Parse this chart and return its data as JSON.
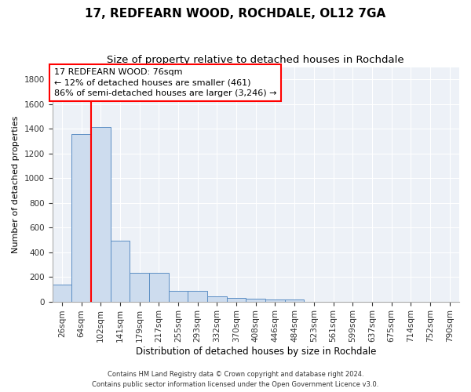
{
  "title": "17, REDFEARN WOOD, ROCHDALE, OL12 7GA",
  "subtitle": "Size of property relative to detached houses in Rochdale",
  "xlabel": "Distribution of detached houses by size in Rochdale",
  "ylabel": "Number of detached properties",
  "footnote1": "Contains HM Land Registry data © Crown copyright and database right 2024.",
  "footnote2": "Contains public sector information licensed under the Open Government Licence v3.0.",
  "bar_labels": [
    "26sqm",
    "64sqm",
    "102sqm",
    "141sqm",
    "179sqm",
    "217sqm",
    "255sqm",
    "293sqm",
    "332sqm",
    "370sqm",
    "408sqm",
    "446sqm",
    "484sqm",
    "523sqm",
    "561sqm",
    "599sqm",
    "637sqm",
    "675sqm",
    "714sqm",
    "752sqm",
    "790sqm"
  ],
  "bar_values": [
    140,
    1360,
    1415,
    490,
    230,
    230,
    85,
    85,
    42,
    27,
    20,
    15,
    18,
    0,
    0,
    0,
    0,
    0,
    0,
    0,
    0
  ],
  "bar_color": "#cddcee",
  "bar_edge_color": "#5b8ec4",
  "red_line_x": 1.5,
  "property_label": "17 REDFEARN WOOD: 76sqm",
  "annotation_line1": "← 12% of detached houses are smaller (461)",
  "annotation_line2": "86% of semi-detached houses are larger (3,246) →",
  "ylim": [
    0,
    1900
  ],
  "yticks": [
    0,
    200,
    400,
    600,
    800,
    1000,
    1200,
    1400,
    1600,
    1800
  ],
  "background_color": "#edf1f7",
  "grid_color": "#ffffff",
  "title_fontsize": 11,
  "subtitle_fontsize": 9.5,
  "ylabel_fontsize": 8,
  "xlabel_fontsize": 8.5,
  "tick_fontsize": 7.5,
  "footnote_fontsize": 6,
  "annot_fontsize": 8
}
